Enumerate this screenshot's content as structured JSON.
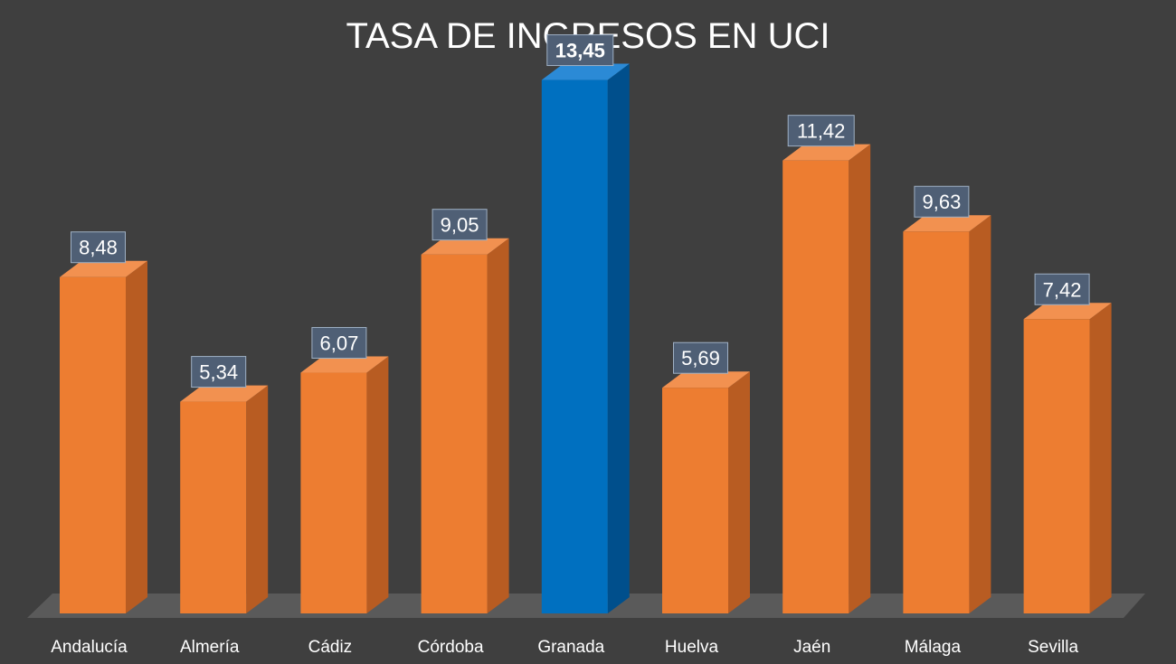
{
  "chart_data": {
    "type": "bar",
    "title": "TASA DE INGRESOS EN UCI",
    "categories": [
      "Andalucía",
      "Almería",
      "Cádiz",
      "Córdoba",
      "Granada",
      "Huelva",
      "Jaén",
      "Málaga",
      "Sevilla"
    ],
    "values": [
      8.48,
      5.34,
      6.07,
      9.05,
      13.45,
      5.69,
      11.42,
      9.63,
      7.42
    ],
    "value_labels": [
      "8,48",
      "5,34",
      "6,07",
      "9,05",
      "13,45",
      "5,69",
      "11,42",
      "9,63",
      "7,42"
    ],
    "highlight_index": 4,
    "ylim": [
      0,
      15
    ],
    "grid": false,
    "legend": "none",
    "colors": {
      "background": "#3f3f3f",
      "bar": "#ed7d31",
      "bar_side": "#b85c22",
      "bar_top": "#f29150",
      "highlight": "#0070c0",
      "highlight_side": "#004f8c",
      "highlight_top": "#2b8ad6",
      "floor": "#5a5a5a",
      "label_box": "#4f5f75",
      "text": "#ffffff"
    }
  }
}
